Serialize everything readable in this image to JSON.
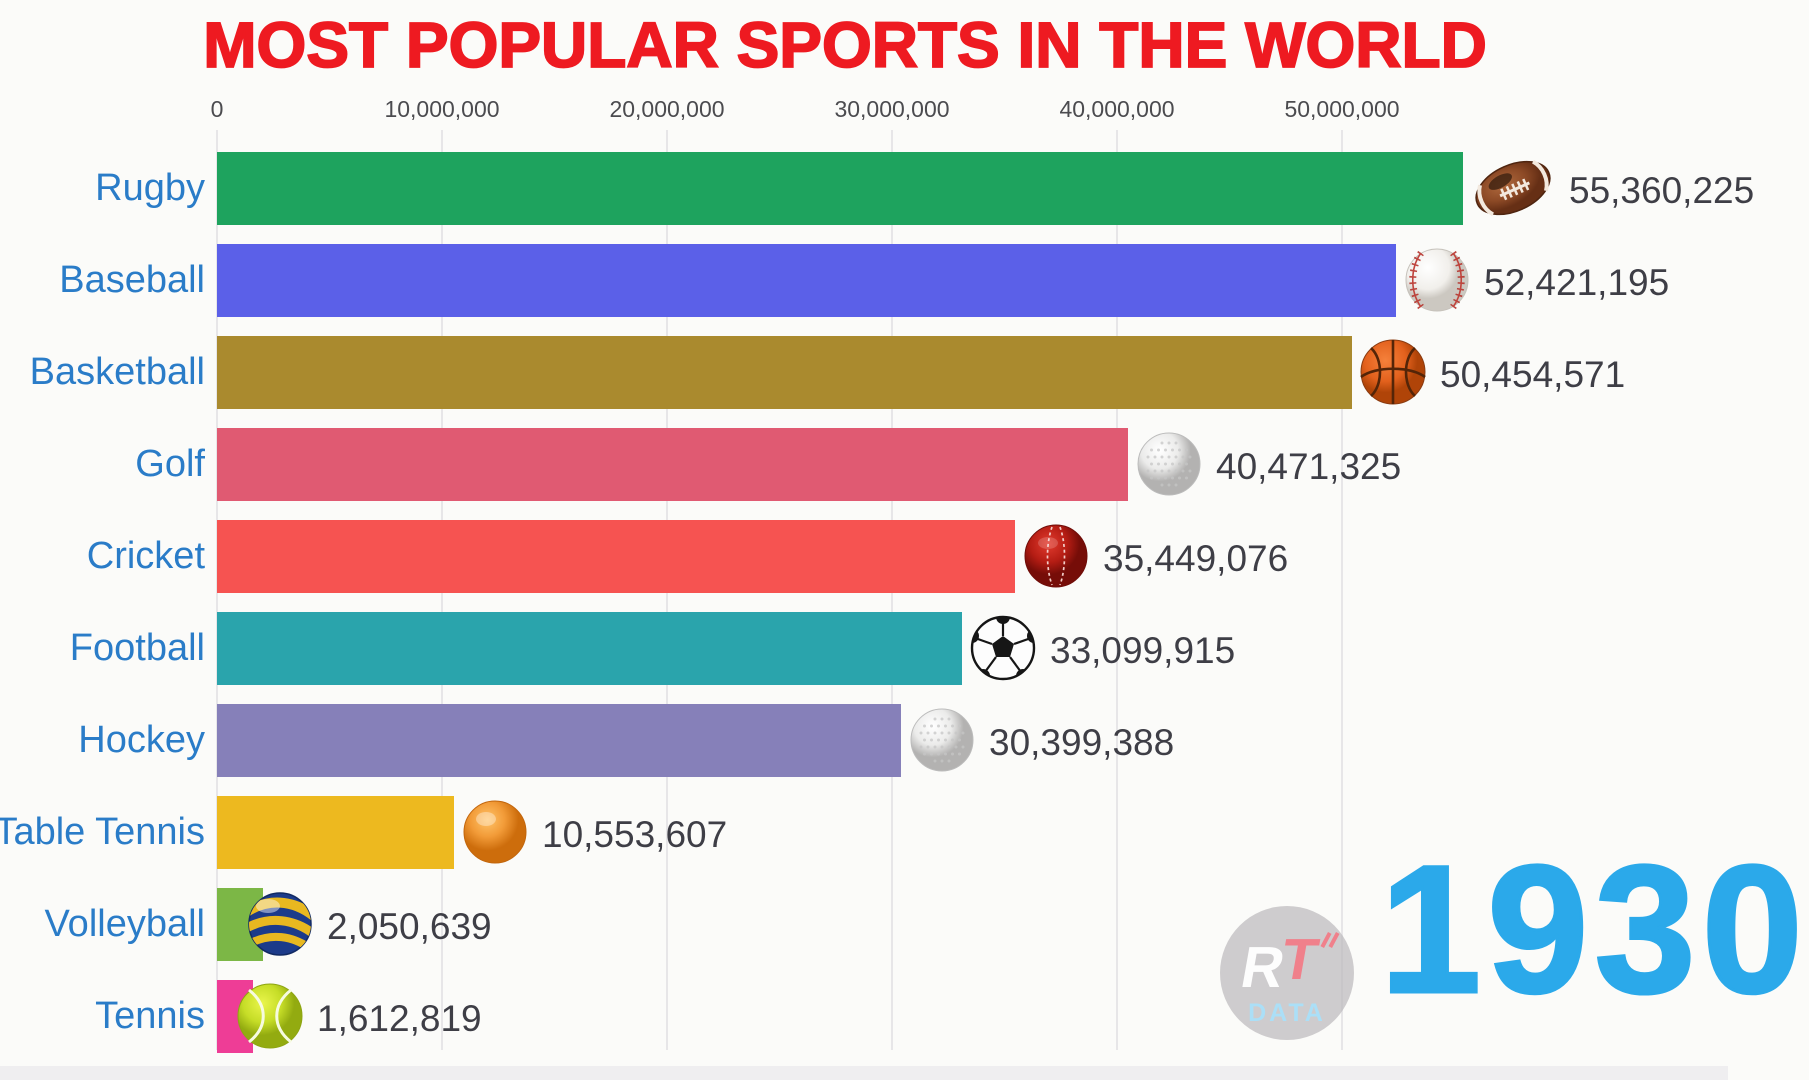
{
  "title": "MOST POPULAR SPORTS IN THE WORLD",
  "year": "1930",
  "watermark": {
    "r": "R",
    "t": "T",
    "sub": "DATA"
  },
  "colors": {
    "title": "#ee1a21",
    "category_label": "#2a7cc8",
    "value_label": "#3e3e46",
    "year": "#2ba9ea",
    "background": "#fbfbf9",
    "gridline": "#e7e6e8"
  },
  "chart_data": {
    "type": "bar",
    "orientation": "horizontal",
    "title": "MOST POPULAR SPORTS IN THE WORLD",
    "xlabel": "",
    "ylabel": "",
    "xlim": [
      0,
      67000000
    ],
    "grid": true,
    "axis_position": "top",
    "x_axis_ticks": [
      "0",
      "10,000,000",
      "20,000,000",
      "30,000,000",
      "40,000,000",
      "50,000,000"
    ],
    "x_axis_values": [
      0,
      10000000,
      20000000,
      30000000,
      40000000,
      50000000
    ],
    "categories": [
      "Rugby",
      "Baseball",
      "Basketball",
      "Golf",
      "Cricket",
      "Football",
      "Hockey",
      "Table Tennis",
      "Volleyball",
      "Tennis"
    ],
    "values": [
      55360225,
      52421195,
      50454571,
      40471325,
      35449076,
      33099915,
      30399388,
      10553607,
      2050639,
      1612819
    ],
    "value_labels": [
      "55,360,225",
      "52,421,195",
      "50,454,571",
      "40,471,325",
      "35,449,076",
      "33,099,915",
      "30,399,388",
      "10,553,607",
      "2,050,639",
      "1,612,819"
    ],
    "bar_colors": [
      "#1ea35e",
      "#5b60e8",
      "#aa8a2e",
      "#e05a72",
      "#f65351",
      "#2aa4ac",
      "#8680b9",
      "#edb91f",
      "#7cb746",
      "#ee3d96"
    ],
    "ball_icons": [
      "american-football",
      "baseball",
      "basketball",
      "golf-ball",
      "cricket-ball",
      "soccer-ball",
      "golf-ball",
      "table-tennis-ball",
      "volleyball",
      "tennis-ball"
    ]
  }
}
